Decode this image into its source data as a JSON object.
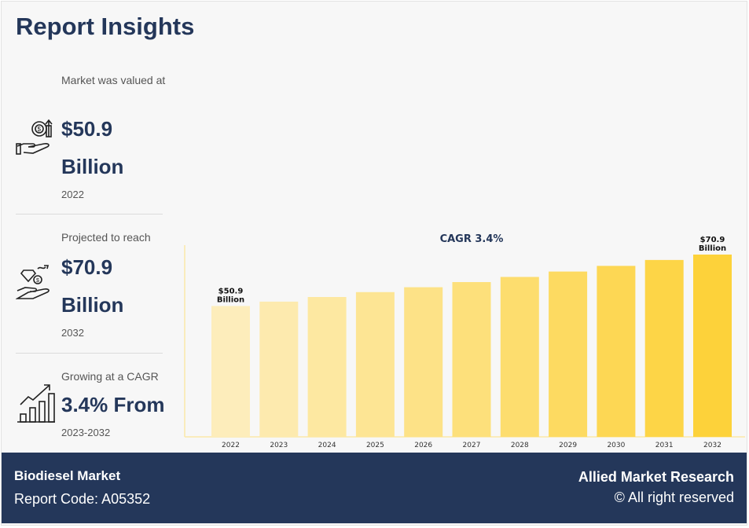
{
  "header": {
    "title": "Report Insights"
  },
  "stats": [
    {
      "label": "Market was valued at",
      "value_line1": "$50.9",
      "value_line2": "Billion",
      "year": "2022",
      "icon": "money-hand-icon"
    },
    {
      "label": "Projected to reach",
      "value_line1": "$70.9",
      "value_line2": "Billion",
      "year": "2032",
      "icon": "diamond-hand-icon"
    },
    {
      "label": "Growing at a CAGR",
      "value_line1": "3.4% From",
      "year": "2023-2032",
      "icon": "growth-chart-icon"
    }
  ],
  "chart_data": {
    "type": "bar",
    "title": "CAGR 3.4%",
    "categories": [
      "2022",
      "2023",
      "2024",
      "2025",
      "2026",
      "2027",
      "2028",
      "2029",
      "2030",
      "2031",
      "2032"
    ],
    "values": [
      50.9,
      52.6,
      54.4,
      56.3,
      58.2,
      60.2,
      62.2,
      64.3,
      66.5,
      68.8,
      70.9
    ],
    "data_labels": {
      "first": [
        "$50.9",
        "Billion"
      ],
      "last": [
        "$70.9",
        "Billion"
      ]
    },
    "color_range": [
      "#fdedbb",
      "#fdd23a"
    ],
    "grid": false
  },
  "footer": {
    "market": "Biodiesel Market",
    "report_code": "Report Code: A05352",
    "brand": "Allied Market Research",
    "rights": "© All right reserved"
  }
}
